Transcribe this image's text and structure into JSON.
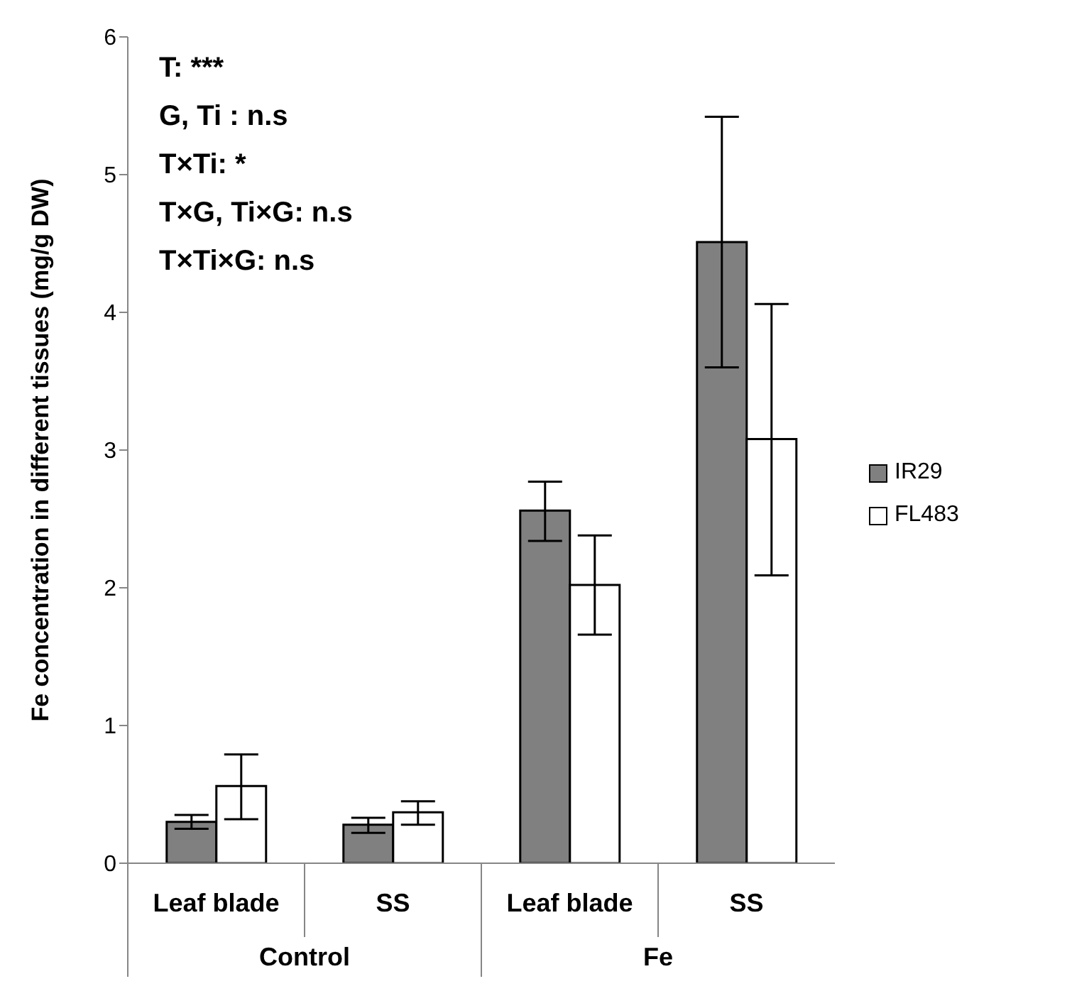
{
  "chart_data": {
    "type": "bar",
    "ylabel": "Fe concentration in different tissues (mg/g DW)",
    "categories": [
      "Leaf blade",
      "SS",
      "Leaf blade",
      "SS"
    ],
    "series": [
      {
        "name": "IR29",
        "color": "#808080",
        "values": [
          0.3,
          0.28,
          2.56,
          4.51
        ],
        "errors": [
          [
            0.25,
            0.35
          ],
          [
            0.22,
            0.33
          ],
          [
            2.34,
            2.77
          ],
          [
            3.6,
            5.42
          ]
        ]
      },
      {
        "name": "FL483",
        "color": "#ffffff",
        "values": [
          0.56,
          0.37,
          2.02,
          3.08
        ],
        "errors": [
          [
            0.32,
            0.79
          ],
          [
            0.28,
            0.45
          ],
          [
            1.66,
            2.38
          ],
          [
            2.09,
            4.06
          ]
        ]
      }
    ],
    "ylim": [
      0,
      6
    ],
    "yticks": [
      0,
      1,
      2,
      3,
      4,
      5,
      6
    ],
    "grid": false,
    "legend": "right",
    "annotations": [
      "T: ***",
      "G, Ti : n.s",
      "T×Ti: *",
      "T×G, Ti×G: n.s",
      "T×Ti×G: n.s",
      "Control",
      "Fe"
    ]
  }
}
